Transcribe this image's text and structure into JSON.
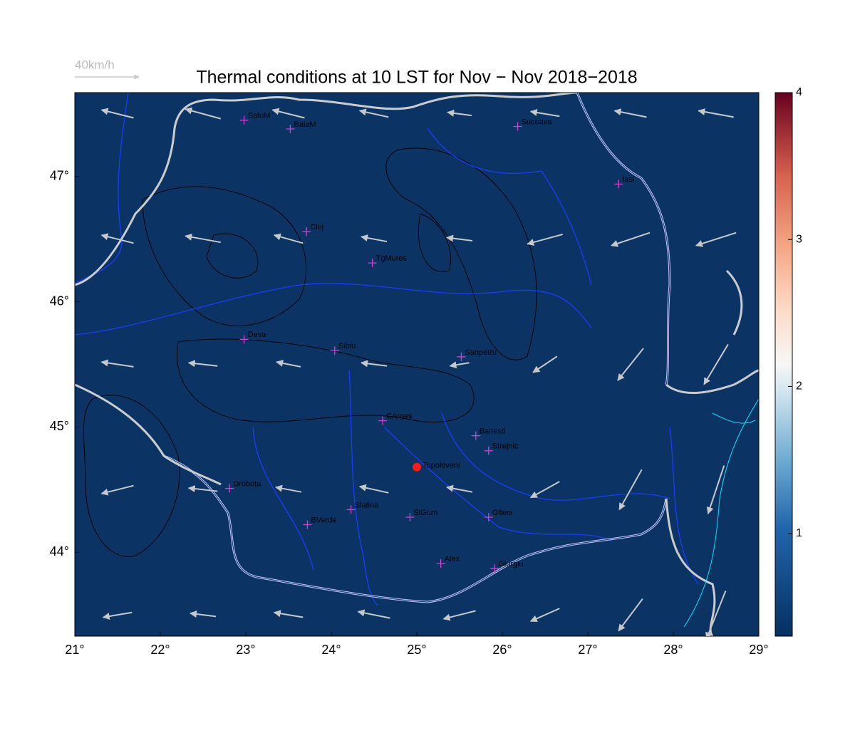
{
  "title": "Thermal conditions at 10 LST for Nov − Nov  2018−2018",
  "scale_arrow": {
    "label": "40km/h",
    "value": 40
  },
  "map": {
    "xlim": [
      21,
      29
    ],
    "ylim": [
      43.33,
      47.67
    ],
    "fill_color": "#0b3464",
    "xticks": [
      {
        "value": 21,
        "label": "21°"
      },
      {
        "value": 22,
        "label": "22°"
      },
      {
        "value": 23,
        "label": "23°"
      },
      {
        "value": 24,
        "label": "24°"
      },
      {
        "value": 25,
        "label": "25°"
      },
      {
        "value": 26,
        "label": "26°"
      },
      {
        "value": 27,
        "label": "27°"
      },
      {
        "value": 28,
        "label": "28°"
      },
      {
        "value": 29,
        "label": "29°"
      }
    ],
    "yticks": [
      {
        "value": 44,
        "label": "44°"
      },
      {
        "value": 45,
        "label": "45°"
      },
      {
        "value": 46,
        "label": "46°"
      },
      {
        "value": 47,
        "label": "47°"
      }
    ]
  },
  "colorbar": {
    "lim": [
      0.3,
      4
    ],
    "ticks": [
      1,
      2,
      3,
      4
    ]
  },
  "stations": [
    {
      "name": "SatuM",
      "lon": 22.98,
      "lat": 47.45
    },
    {
      "name": "BaiaM",
      "lon": 23.52,
      "lat": 47.38
    },
    {
      "name": "Suceava",
      "lon": 26.18,
      "lat": 47.4
    },
    {
      "name": "Iasi",
      "lon": 27.36,
      "lat": 46.94
    },
    {
      "name": "Cluj",
      "lon": 23.71,
      "lat": 46.56
    },
    {
      "name": "TgMures",
      "lon": 24.48,
      "lat": 46.31
    },
    {
      "name": "Deva",
      "lon": 22.98,
      "lat": 45.7
    },
    {
      "name": "Sibiu",
      "lon": 24.04,
      "lat": 45.61
    },
    {
      "name": "Sanpetru",
      "lon": 25.52,
      "lat": 45.56
    },
    {
      "name": "CArges",
      "lon": 24.6,
      "lat": 45.05
    },
    {
      "name": "Banesti",
      "lon": 25.69,
      "lat": 44.93
    },
    {
      "name": "Strejnic",
      "lon": 25.84,
      "lat": 44.81
    },
    {
      "name": "Drobeta",
      "lon": 22.81,
      "lat": 44.51
    },
    {
      "name": "Slatina",
      "lon": 24.23,
      "lat": 44.34
    },
    {
      "name": "SlGum",
      "lon": 24.92,
      "lat": 44.28
    },
    {
      "name": "Olteni",
      "lon": 25.84,
      "lat": 44.28
    },
    {
      "name": "BVerde",
      "lon": 23.72,
      "lat": 44.22
    },
    {
      "name": "Alex",
      "lon": 25.28,
      "lat": 43.91
    },
    {
      "name": "Giurgiu",
      "lon": 25.91,
      "lat": 43.87
    }
  ],
  "highlight": {
    "name": "Topoloveni",
    "lon": 25.0,
    "lat": 44.68,
    "color": "#ff1a1a"
  },
  "wind": [
    {
      "lon": 21.5,
      "lat": 47.5,
      "u": -20,
      "v": 5
    },
    {
      "lon": 22.5,
      "lat": 47.5,
      "u": -22,
      "v": 6
    },
    {
      "lon": 23.5,
      "lat": 47.5,
      "u": -20,
      "v": 5
    },
    {
      "lon": 24.5,
      "lat": 47.5,
      "u": -18,
      "v": 4
    },
    {
      "lon": 25.5,
      "lat": 47.5,
      "u": -15,
      "v": 2
    },
    {
      "lon": 26.5,
      "lat": 47.5,
      "u": -18,
      "v": 3
    },
    {
      "lon": 27.5,
      "lat": 47.5,
      "u": -20,
      "v": 4
    },
    {
      "lon": 28.5,
      "lat": 47.5,
      "u": -22,
      "v": 4
    },
    {
      "lon": 21.5,
      "lat": 46.5,
      "u": -20,
      "v": 5
    },
    {
      "lon": 22.5,
      "lat": 46.5,
      "u": -22,
      "v": 4
    },
    {
      "lon": 23.5,
      "lat": 46.5,
      "u": -18,
      "v": 5
    },
    {
      "lon": 24.5,
      "lat": 46.5,
      "u": -16,
      "v": 3
    },
    {
      "lon": 25.5,
      "lat": 46.5,
      "u": -16,
      "v": 2
    },
    {
      "lon": 26.5,
      "lat": 46.5,
      "u": -22,
      "v": -6
    },
    {
      "lon": 27.5,
      "lat": 46.5,
      "u": -24,
      "v": -8
    },
    {
      "lon": 28.5,
      "lat": 46.5,
      "u": -25,
      "v": -8
    },
    {
      "lon": 21.5,
      "lat": 45.5,
      "u": -20,
      "v": 3
    },
    {
      "lon": 22.5,
      "lat": 45.5,
      "u": -18,
      "v": 2
    },
    {
      "lon": 23.5,
      "lat": 45.5,
      "u": -15,
      "v": 3
    },
    {
      "lon": 24.5,
      "lat": 45.5,
      "u": -16,
      "v": 2
    },
    {
      "lon": 25.5,
      "lat": 45.5,
      "u": -12,
      "v": -2
    },
    {
      "lon": 26.5,
      "lat": 45.5,
      "u": -15,
      "v": -10
    },
    {
      "lon": 27.5,
      "lat": 45.5,
      "u": -16,
      "v": -20
    },
    {
      "lon": 28.5,
      "lat": 45.5,
      "u": -15,
      "v": -25
    },
    {
      "lon": 21.5,
      "lat": 44.5,
      "u": -20,
      "v": -5
    },
    {
      "lon": 22.5,
      "lat": 44.5,
      "u": -18,
      "v": 2
    },
    {
      "lon": 23.5,
      "lat": 44.5,
      "u": -16,
      "v": 3
    },
    {
      "lon": 24.5,
      "lat": 44.5,
      "u": -18,
      "v": 4
    },
    {
      "lon": 25.5,
      "lat": 44.5,
      "u": -16,
      "v": 3
    },
    {
      "lon": 26.5,
      "lat": 44.5,
      "u": -18,
      "v": -10
    },
    {
      "lon": 27.5,
      "lat": 44.5,
      "u": -14,
      "v": -25
    },
    {
      "lon": 28.5,
      "lat": 44.5,
      "u": -10,
      "v": -30
    },
    {
      "lon": 21.5,
      "lat": 43.5,
      "u": -18,
      "v": -3
    },
    {
      "lon": 22.5,
      "lat": 43.5,
      "u": -16,
      "v": 2
    },
    {
      "lon": 23.5,
      "lat": 43.5,
      "u": -18,
      "v": 3
    },
    {
      "lon": 24.5,
      "lat": 43.5,
      "u": -20,
      "v": 4
    },
    {
      "lon": 25.5,
      "lat": 43.5,
      "u": -20,
      "v": -5
    },
    {
      "lon": 26.5,
      "lat": 43.5,
      "u": -18,
      "v": -8
    },
    {
      "lon": 27.5,
      "lat": 43.5,
      "u": -15,
      "v": -20
    },
    {
      "lon": 28.5,
      "lat": 43.5,
      "u": -12,
      "v": -30
    }
  ]
}
